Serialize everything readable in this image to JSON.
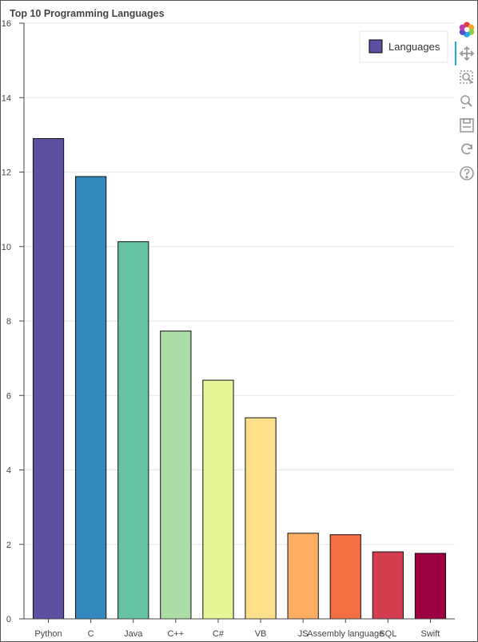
{
  "chart_data": {
    "type": "bar",
    "title": "Top 10 Programming Languages",
    "categories": [
      "Python",
      "C",
      "Java",
      "C++",
      "C#",
      "VB",
      "JS",
      "Assembly language",
      "SQL",
      "Swift"
    ],
    "values": [
      12.9,
      11.88,
      10.13,
      7.73,
      6.41,
      5.4,
      2.3,
      2.26,
      1.8,
      1.76
    ],
    "colors": [
      "#5e4fa2",
      "#3288bd",
      "#66c2a5",
      "#abdda4",
      "#e6f598",
      "#fee08b",
      "#fdae61",
      "#f46d43",
      "#d53e4f",
      "#9e0142"
    ],
    "yticks": [
      "0",
      "2",
      "4",
      "6",
      "8",
      "10",
      "12",
      "14",
      "16"
    ],
    "ylim": [
      0,
      16
    ],
    "grid": true,
    "legend": {
      "label": "Languages",
      "placement": "top-right",
      "swatch_color": "#5e4fa2"
    }
  },
  "toolbar": {
    "icons": [
      "bokeh-logo-icon",
      "pan-icon",
      "box-zoom-icon",
      "wheel-zoom-icon",
      "save-icon",
      "reset-icon",
      "help-icon"
    ]
  }
}
